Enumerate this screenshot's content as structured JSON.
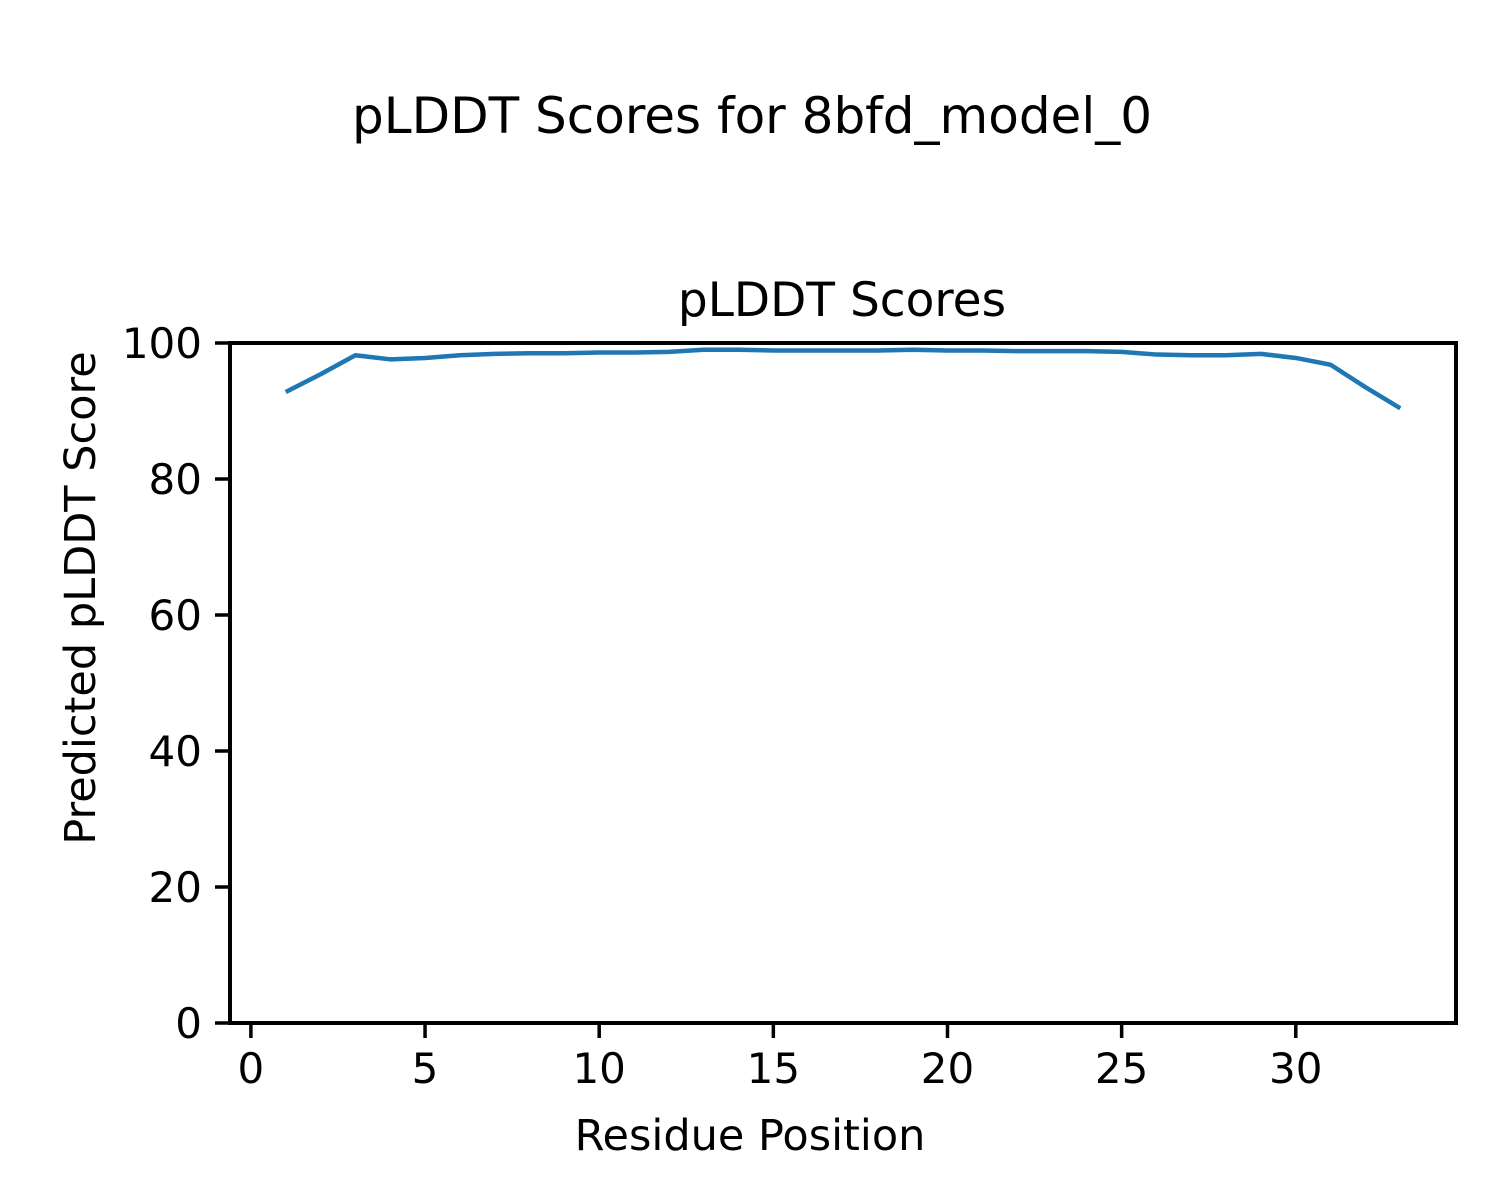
{
  "figure": {
    "suptitle": "pLDDT Scores for 8bfd_model_0",
    "axes_title": "pLDDT Scores",
    "xlabel": "Residue Position",
    "ylabel": "Predicted pLDDT Score"
  },
  "chart_data": {
    "type": "line",
    "title": "pLDDT Scores",
    "suptitle": "pLDDT Scores for 8bfd_model_0",
    "xlabel": "Residue Position",
    "ylabel": "Predicted pLDDT Score",
    "x": [
      1,
      2,
      3,
      4,
      5,
      6,
      7,
      8,
      9,
      10,
      11,
      12,
      13,
      14,
      15,
      16,
      17,
      18,
      19,
      20,
      21,
      22,
      23,
      24,
      25,
      26,
      27,
      28,
      29,
      30,
      31,
      32,
      33
    ],
    "series": [
      {
        "name": "pLDDT",
        "values": [
          92.8,
          95.4,
          98.2,
          97.6,
          97.8,
          98.2,
          98.4,
          98.5,
          98.5,
          98.6,
          98.6,
          98.7,
          99.0,
          99.0,
          98.9,
          98.9,
          98.9,
          98.9,
          99.0,
          98.9,
          98.9,
          98.8,
          98.8,
          98.8,
          98.7,
          98.3,
          98.2,
          98.2,
          98.4,
          97.8,
          96.8,
          93.5,
          90.4
        ]
      }
    ],
    "xlim": [
      -0.6,
      34.6
    ],
    "ylim": [
      0,
      100
    ],
    "xticks": [
      0,
      5,
      10,
      15,
      20,
      25,
      30
    ],
    "yticks": [
      0,
      20,
      40,
      60,
      80,
      100
    ],
    "grid": false,
    "legend": "none",
    "line_color": "#1f77b4",
    "axis_color": "#000000",
    "background_color": "#ffffff"
  }
}
